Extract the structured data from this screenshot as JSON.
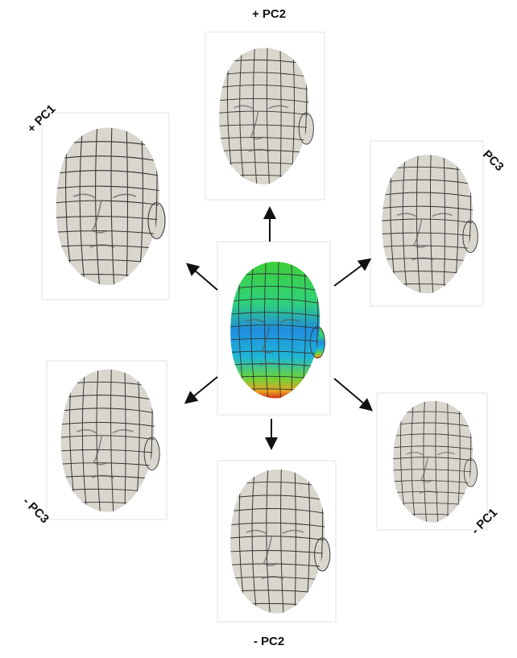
{
  "labels": {
    "plus_pc2": "+ PC2",
    "plus_pc1": "+ PC1",
    "pc3": "PC3",
    "minus_pc3": "- PC3",
    "minus_pc1": "- PC1",
    "minus_pc2": "- PC2"
  }
}
